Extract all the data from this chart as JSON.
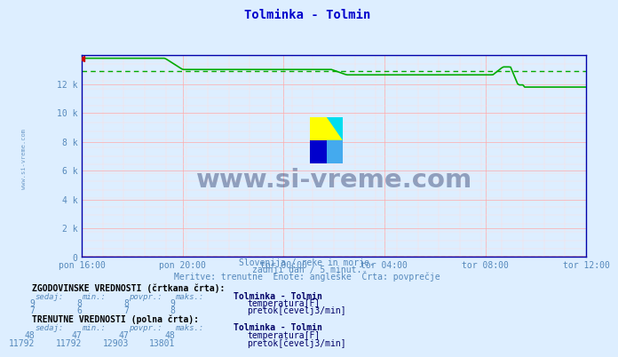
{
  "title": "Tolminka - Tolmin",
  "title_color": "#0000cc",
  "bg_color": "#ddeeff",
  "plot_bg_color": "#ddeeff",
  "grid_major_color": "#ffaaaa",
  "grid_minor_color": "#ffdddd",
  "ylim": [
    0,
    14000
  ],
  "yticks": [
    0,
    2000,
    4000,
    6000,
    8000,
    10000,
    12000
  ],
  "ytick_labels": [
    "0",
    "2 k",
    "4 k",
    "6 k",
    "8 k",
    "10 k",
    "12 k"
  ],
  "xtick_labels": [
    "pon 16:00",
    "pon 20:00",
    "tor 00:00",
    "tor 04:00",
    "tor 08:00",
    "tor 12:00"
  ],
  "n_points": 288,
  "flow_color": "#00aa00",
  "temp_color": "#cc0000",
  "flow_avg": 12903,
  "temp_avg": 8,
  "spine_color": "#0000aa",
  "text_color": "#5588bb",
  "dark_text": "#003366",
  "watermark": "www.si-vreme.com",
  "left_text": "www.si-vreme.com",
  "sub1": "Slovenija / reke in morje.",
  "sub2": "zadnji dan / 5 minut.",
  "sub3": "Meritve: trenutne  Enote: angleške  Črta: povprečje",
  "th1": "ZGODOVINSKE VREDNOSTI (črtkana črta):",
  "th2": "TRENUTNE VREDNOSTI (polna črta):",
  "col_hdr": [
    "sedaj:",
    "min.:",
    "povpr.:",
    "maks.:"
  ],
  "station": "Tolminka - Tolmin",
  "hist_temp": [
    9,
    8,
    8,
    9
  ],
  "hist_flow": [
    7,
    6,
    7,
    8
  ],
  "curr_temp": [
    48,
    47,
    47,
    48
  ],
  "curr_flow": [
    11792,
    11792,
    12903,
    13801
  ],
  "icon_colors": [
    "#ffff00",
    "#00ddee",
    "#0000cc",
    "#44aaee"
  ]
}
